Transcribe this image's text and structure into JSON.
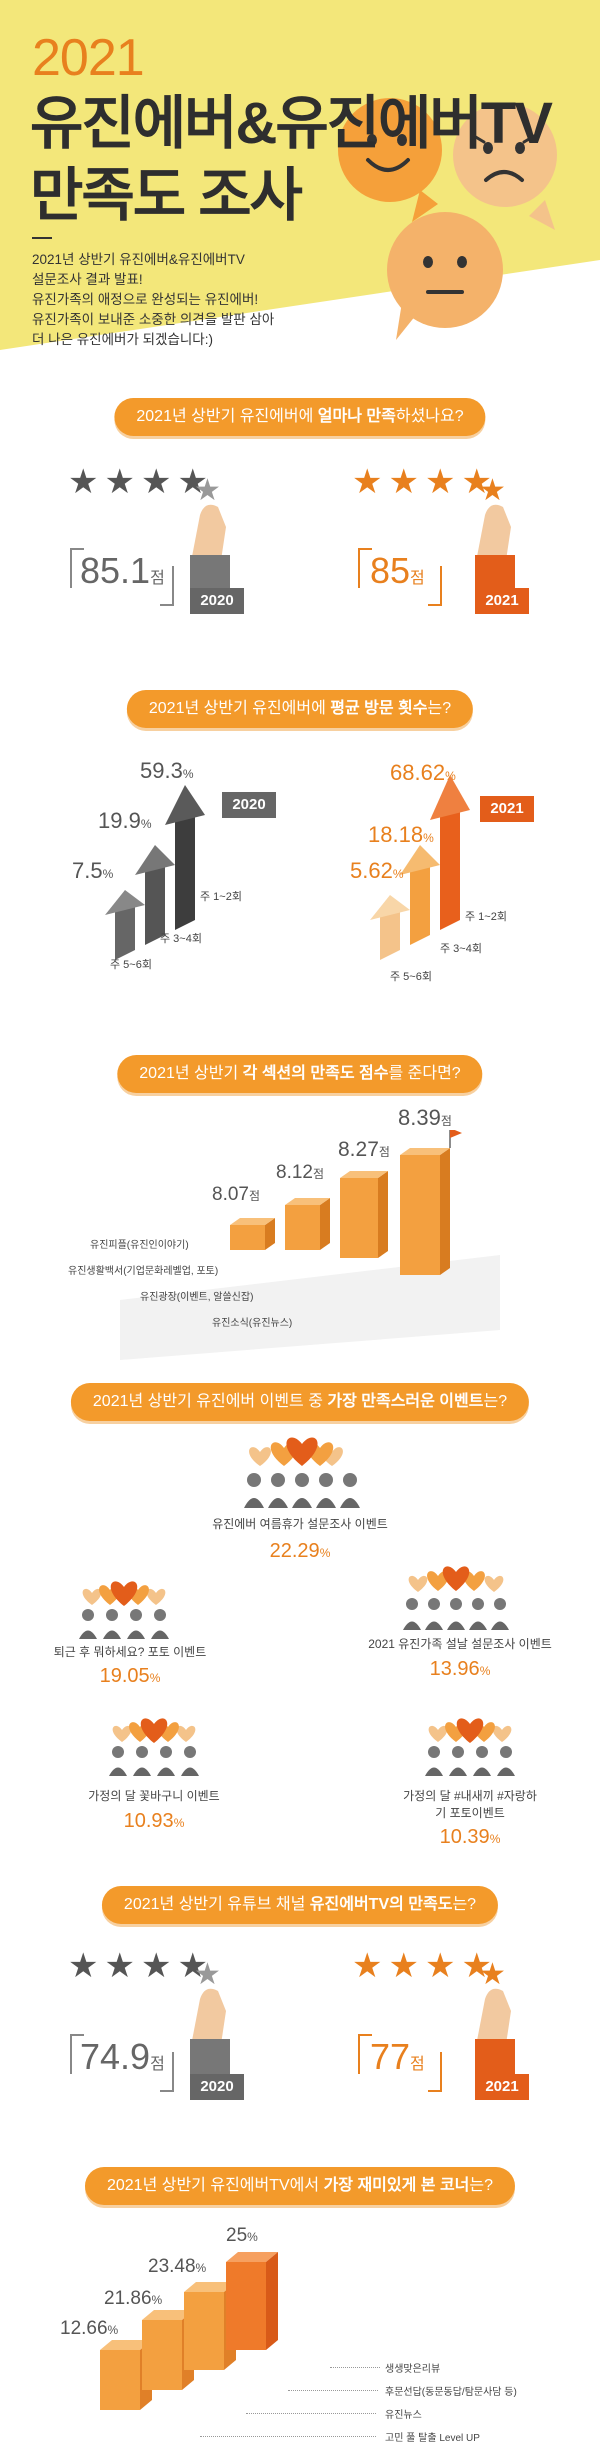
{
  "hero": {
    "year": "2021",
    "title_line1": "유진에버&유진에버TV",
    "title_line2": "만족도 조사",
    "intro": [
      "2021년 상반기 유진에버&유진에버TV",
      "설문조사 결과 발표!",
      "유진가족의 애정으로 완성되는 유진에버!",
      "유진가족이 보내준 소중한 의견을 발판 삼아",
      "더 나은 유진에버가 되겠습니다:)"
    ]
  },
  "q1": {
    "pre": "2021년 상반기 유진에버에 ",
    "bold": "얼마나 만족",
    "post": "하셨나요?",
    "left": {
      "score": "85.1",
      "unit": "점",
      "year": "2020",
      "stars": 4.2
    },
    "right": {
      "score": "85",
      "unit": "점",
      "year": "2021",
      "stars": 4.25
    }
  },
  "q2": {
    "pre": "2021년 상반기 유진에버에 ",
    "bold": "평균 방문 횟수",
    "post": "는?",
    "left": {
      "year": "2020",
      "items": [
        {
          "pct": "7.5",
          "label": "주 5~6회"
        },
        {
          "pct": "19.9",
          "label": "주 3~4회"
        },
        {
          "pct": "59.3",
          "label": "주 1~2회"
        }
      ]
    },
    "right": {
      "year": "2021",
      "items": [
        {
          "pct": "5.62",
          "label": "주 5~6회"
        },
        {
          "pct": "18.18",
          "label": "주 3~4회"
        },
        {
          "pct": "68.62",
          "label": "주 1~2회"
        }
      ]
    },
    "pct_unit": "%"
  },
  "q3": {
    "pre": "2021년 상반기 ",
    "bold1": "각 섹션의 만족도 점수",
    "post": "를 준다면?",
    "unit": "점",
    "items": [
      {
        "score": "8.07",
        "label": "유진피플(유진인이야기)"
      },
      {
        "score": "8.12",
        "label": "유진생활백서(기업문화레벨업, 포토)"
      },
      {
        "score": "8.27",
        "label": "유진광장(이벤트, 알쓸신잡)"
      },
      {
        "score": "8.39",
        "label": "유진소식(유진뉴스)"
      }
    ]
  },
  "q4": {
    "pre": "2021년 상반기 유진에버 이벤트 중 ",
    "bold": "가장 만족스러운 이벤트",
    "post": "는?",
    "unit": "%",
    "events": [
      {
        "name": "유진에버 여름휴가 설문조사 이벤트",
        "pct": "22.29"
      },
      {
        "name": "퇴근 후 뭐하세요? 포토 이벤트",
        "pct": "19.05"
      },
      {
        "name": "2021 유진가족 설날 설문조사 이벤트",
        "pct": "13.96"
      },
      {
        "name": "가정의 달 꽃바구니 이벤트",
        "pct": "10.93"
      },
      {
        "name": "가정의 달 #내새끼 #자랑하기 포토이벤트",
        "pct": "10.39"
      }
    ]
  },
  "q5": {
    "pre": "2021년 상반기 유튜브 채널 ",
    "bold": "유진에버TV의 만족도",
    "post": "는?",
    "left": {
      "score": "74.9",
      "unit": "점",
      "year": "2020",
      "stars": 3.7
    },
    "right": {
      "score": "77",
      "unit": "점",
      "year": "2021",
      "stars": 3.85
    }
  },
  "q6": {
    "pre": "2021년 상반기 유진에버TV에서 ",
    "bold": "가장 재미있게 본 코너",
    "post": "는?",
    "unit": "%",
    "items": [
      {
        "pct": "12.66",
        "label": "고민 풀 탈출 Level UP"
      },
      {
        "pct": "21.86",
        "label": "유진뉴스"
      },
      {
        "pct": "23.48",
        "label": "후문선답(동문동답/탐문사담 등)"
      },
      {
        "pct": "25",
        "label": "생생맞은리뷰"
      }
    ]
  },
  "colors": {
    "accent": "#f39a2b",
    "accent_dark": "#e35d1a",
    "hero_yellow": "#f3e77a",
    "gray": "#555555"
  }
}
